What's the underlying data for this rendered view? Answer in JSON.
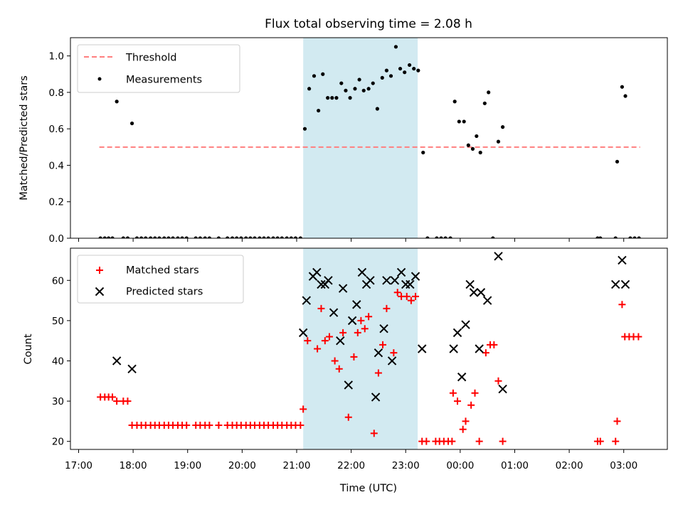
{
  "chart_data": [
    {
      "type": "scatter",
      "panel": "top",
      "title": "Flux total observing time = 2.08 h",
      "xlabel": "",
      "ylabel": "Matched/Predicted stars",
      "ylim": [
        0,
        1.1
      ],
      "yticks": [
        "0.0",
        "0.2",
        "0.4",
        "0.6",
        "0.8",
        "1.0"
      ],
      "xlim_hours": [
        16.85,
        27.8
      ],
      "threshold": {
        "name": "Threshold",
        "value": 0.5,
        "x_range": [
          17.38,
          27.3
        ],
        "color": "#ff7f7f"
      },
      "shaded_region": {
        "x_range": [
          21.12,
          23.22
        ],
        "color": "#add8e6"
      },
      "legend": {
        "placement": "upper-left",
        "entries": [
          "Threshold",
          "Measurements"
        ]
      },
      "series": [
        {
          "name": "Measurements",
          "color": "#000000",
          "marker": "dot",
          "points": [
            [
              17.4,
              0
            ],
            [
              17.48,
              0
            ],
            [
              17.55,
              0
            ],
            [
              17.62,
              0
            ],
            [
              17.7,
              0.75
            ],
            [
              17.82,
              0
            ],
            [
              17.9,
              0
            ],
            [
              17.98,
              0.63
            ],
            [
              18.07,
              0
            ],
            [
              18.15,
              0
            ],
            [
              18.23,
              0
            ],
            [
              18.32,
              0
            ],
            [
              18.4,
              0
            ],
            [
              18.48,
              0
            ],
            [
              18.57,
              0
            ],
            [
              18.65,
              0
            ],
            [
              18.73,
              0
            ],
            [
              18.82,
              0
            ],
            [
              18.9,
              0
            ],
            [
              18.98,
              0
            ],
            [
              19.15,
              0
            ],
            [
              19.23,
              0
            ],
            [
              19.32,
              0
            ],
            [
              19.4,
              0
            ],
            [
              19.57,
              0
            ],
            [
              19.73,
              0
            ],
            [
              19.82,
              0
            ],
            [
              19.9,
              0
            ],
            [
              19.98,
              0
            ],
            [
              20.07,
              0
            ],
            [
              20.15,
              0
            ],
            [
              20.23,
              0
            ],
            [
              20.32,
              0
            ],
            [
              20.4,
              0
            ],
            [
              20.48,
              0
            ],
            [
              20.57,
              0
            ],
            [
              20.65,
              0
            ],
            [
              20.73,
              0
            ],
            [
              20.82,
              0
            ],
            [
              20.9,
              0
            ],
            [
              20.98,
              0
            ],
            [
              21.07,
              0
            ],
            [
              21.15,
              0.6
            ],
            [
              21.23,
              0.82
            ],
            [
              21.32,
              0.89
            ],
            [
              21.4,
              0.7
            ],
            [
              21.48,
              0.9
            ],
            [
              21.57,
              0.77
            ],
            [
              21.65,
              0.77
            ],
            [
              21.73,
              0.77
            ],
            [
              21.82,
              0.85
            ],
            [
              21.9,
              0.81
            ],
            [
              21.98,
              0.77
            ],
            [
              22.07,
              0.82
            ],
            [
              22.15,
              0.87
            ],
            [
              22.23,
              0.81
            ],
            [
              22.32,
              0.82
            ],
            [
              22.4,
              0.85
            ],
            [
              22.48,
              0.71
            ],
            [
              22.57,
              0.88
            ],
            [
              22.65,
              0.92
            ],
            [
              22.73,
              0.89
            ],
            [
              22.82,
              1.05
            ],
            [
              22.9,
              0.93
            ],
            [
              22.98,
              0.91
            ],
            [
              23.07,
              0.95
            ],
            [
              23.15,
              0.93
            ],
            [
              23.23,
              0.92
            ],
            [
              23.32,
              0.47
            ],
            [
              23.4,
              0
            ],
            [
              23.57,
              0
            ],
            [
              23.65,
              0
            ],
            [
              23.73,
              0
            ],
            [
              23.82,
              0
            ],
            [
              23.9,
              0.75
            ],
            [
              23.98,
              0.64
            ],
            [
              24.07,
              0.64
            ],
            [
              24.15,
              0.51
            ],
            [
              24.23,
              0.49
            ],
            [
              24.3,
              0.56
            ],
            [
              24.37,
              0.47
            ],
            [
              24.45,
              0.74
            ],
            [
              24.52,
              0.8
            ],
            [
              24.6,
              0
            ],
            [
              24.7,
              0.53
            ],
            [
              24.78,
              0.61
            ],
            [
              26.52,
              0
            ],
            [
              26.57,
              0
            ],
            [
              26.85,
              0
            ],
            [
              26.88,
              0.42
            ],
            [
              26.97,
              0.83
            ],
            [
              27.03,
              0.78
            ],
            [
              27.12,
              0
            ],
            [
              27.2,
              0
            ],
            [
              27.28,
              0
            ]
          ]
        }
      ]
    },
    {
      "type": "scatter",
      "panel": "bottom",
      "title": "",
      "xlabel": "Time (UTC)",
      "ylabel": "Count",
      "ylim": [
        18,
        68
      ],
      "yticks": [
        "20",
        "30",
        "40",
        "50",
        "60"
      ],
      "xlim_hours": [
        16.85,
        27.8
      ],
      "xticks": [
        "17:00",
        "18:00",
        "19:00",
        "20:00",
        "21:00",
        "22:00",
        "23:00",
        "00:00",
        "01:00",
        "02:00",
        "03:00"
      ],
      "shaded_region": {
        "x_range": [
          21.12,
          23.22
        ],
        "color": "#add8e6"
      },
      "legend": {
        "placement": "upper-left",
        "entries": [
          "Matched stars",
          "Predicted stars"
        ]
      },
      "series": [
        {
          "name": "Matched stars",
          "color": "#ff0000",
          "marker": "plus",
          "points": [
            [
              17.4,
              31
            ],
            [
              17.48,
              31
            ],
            [
              17.55,
              31
            ],
            [
              17.62,
              31
            ],
            [
              17.7,
              30
            ],
            [
              17.82,
              30
            ],
            [
              17.9,
              30
            ],
            [
              17.98,
              24
            ],
            [
              18.07,
              24
            ],
            [
              18.15,
              24
            ],
            [
              18.23,
              24
            ],
            [
              18.32,
              24
            ],
            [
              18.4,
              24
            ],
            [
              18.48,
              24
            ],
            [
              18.57,
              24
            ],
            [
              18.65,
              24
            ],
            [
              18.73,
              24
            ],
            [
              18.82,
              24
            ],
            [
              18.9,
              24
            ],
            [
              18.98,
              24
            ],
            [
              19.15,
              24
            ],
            [
              19.23,
              24
            ],
            [
              19.32,
              24
            ],
            [
              19.4,
              24
            ],
            [
              19.57,
              24
            ],
            [
              19.73,
              24
            ],
            [
              19.82,
              24
            ],
            [
              19.9,
              24
            ],
            [
              19.98,
              24
            ],
            [
              20.07,
              24
            ],
            [
              20.15,
              24
            ],
            [
              20.23,
              24
            ],
            [
              20.32,
              24
            ],
            [
              20.4,
              24
            ],
            [
              20.48,
              24
            ],
            [
              20.57,
              24
            ],
            [
              20.65,
              24
            ],
            [
              20.73,
              24
            ],
            [
              20.82,
              24
            ],
            [
              20.9,
              24
            ],
            [
              20.98,
              24
            ],
            [
              21.07,
              24
            ],
            [
              21.12,
              28
            ],
            [
              21.2,
              45
            ],
            [
              21.38,
              43
            ],
            [
              21.45,
              53
            ],
            [
              21.52,
              45
            ],
            [
              21.6,
              46
            ],
            [
              21.7,
              40
            ],
            [
              21.78,
              38
            ],
            [
              21.85,
              47
            ],
            [
              21.95,
              26
            ],
            [
              22.05,
              41
            ],
            [
              22.12,
              47
            ],
            [
              22.18,
              50
            ],
            [
              22.25,
              48
            ],
            [
              22.32,
              51
            ],
            [
              22.42,
              22
            ],
            [
              22.5,
              37
            ],
            [
              22.58,
              44
            ],
            [
              22.65,
              53
            ],
            [
              22.78,
              42
            ],
            [
              22.85,
              57
            ],
            [
              22.92,
              56
            ],
            [
              23.02,
              56
            ],
            [
              23.1,
              55
            ],
            [
              23.18,
              56
            ],
            [
              23.3,
              20
            ],
            [
              23.38,
              20
            ],
            [
              23.55,
              20
            ],
            [
              23.62,
              20
            ],
            [
              23.7,
              20
            ],
            [
              23.78,
              20
            ],
            [
              23.85,
              20
            ],
            [
              23.87,
              32
            ],
            [
              23.95,
              30
            ],
            [
              24.05,
              23
            ],
            [
              24.1,
              25
            ],
            [
              24.2,
              29
            ],
            [
              24.27,
              32
            ],
            [
              24.35,
              20
            ],
            [
              24.47,
              42
            ],
            [
              24.55,
              44
            ],
            [
              24.62,
              44
            ],
            [
              24.7,
              35
            ],
            [
              24.78,
              20
            ],
            [
              26.52,
              20
            ],
            [
              26.57,
              20
            ],
            [
              26.85,
              20
            ],
            [
              26.88,
              25
            ],
            [
              26.97,
              54
            ],
            [
              27.02,
              46
            ],
            [
              27.1,
              46
            ],
            [
              27.18,
              46
            ],
            [
              27.27,
              46
            ]
          ]
        },
        {
          "name": "Predicted stars",
          "color": "#000000",
          "marker": "x",
          "points": [
            [
              17.7,
              40
            ],
            [
              17.98,
              38
            ],
            [
              21.12,
              47
            ],
            [
              21.18,
              55
            ],
            [
              21.3,
              61
            ],
            [
              21.37,
              62
            ],
            [
              21.45,
              59
            ],
            [
              21.52,
              59
            ],
            [
              21.58,
              60
            ],
            [
              21.68,
              52
            ],
            [
              21.8,
              45
            ],
            [
              21.85,
              58
            ],
            [
              21.95,
              34
            ],
            [
              22.02,
              50
            ],
            [
              22.1,
              54
            ],
            [
              22.2,
              62
            ],
            [
              22.28,
              59
            ],
            [
              22.35,
              60
            ],
            [
              22.45,
              31
            ],
            [
              22.5,
              42
            ],
            [
              22.6,
              48
            ],
            [
              22.65,
              60
            ],
            [
              22.75,
              40
            ],
            [
              22.8,
              60
            ],
            [
              22.92,
              62
            ],
            [
              23.0,
              59
            ],
            [
              23.08,
              59
            ],
            [
              23.18,
              61
            ],
            [
              23.3,
              43
            ],
            [
              23.88,
              43
            ],
            [
              23.95,
              47
            ],
            [
              24.03,
              36
            ],
            [
              24.1,
              49
            ],
            [
              24.18,
              59
            ],
            [
              24.25,
              57
            ],
            [
              24.35,
              43
            ],
            [
              24.38,
              57
            ],
            [
              24.5,
              55
            ],
            [
              24.7,
              66
            ],
            [
              24.78,
              33
            ],
            [
              26.85,
              59
            ],
            [
              26.97,
              65
            ],
            [
              27.03,
              59
            ]
          ]
        }
      ]
    }
  ]
}
